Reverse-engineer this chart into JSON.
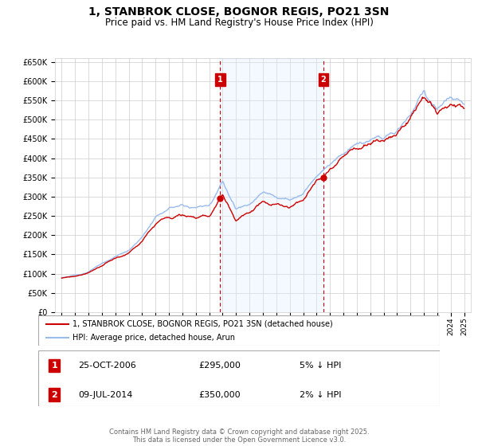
{
  "title": "1, STANBROK CLOSE, BOGNOR REGIS, PO21 3SN",
  "subtitle": "Price paid vs. HM Land Registry's House Price Index (HPI)",
  "title_fontsize": 10,
  "subtitle_fontsize": 8.5,
  "background_color": "#ffffff",
  "plot_background_color": "#ffffff",
  "grid_color": "#cccccc",
  "legend_label_red": "1, STANBROK CLOSE, BOGNOR REGIS, PO21 3SN (detached house)",
  "legend_label_blue": "HPI: Average price, detached house, Arun",
  "red_color": "#cc0000",
  "blue_color": "#99bbee",
  "sale1_date": 2006.82,
  "sale1_price": 295000,
  "sale1_label": "1",
  "sale2_date": 2014.52,
  "sale2_price": 350000,
  "sale2_label": "2",
  "vline_color": "#cc0000",
  "shade_color": "#ddeeff",
  "annotation_box_color": "#cc0000",
  "ylim_min": 0,
  "ylim_max": 660000,
  "xlim_min": 1994.5,
  "xlim_max": 2025.5,
  "footer_text": "Contains HM Land Registry data © Crown copyright and database right 2025.\nThis data is licensed under the Open Government Licence v3.0."
}
